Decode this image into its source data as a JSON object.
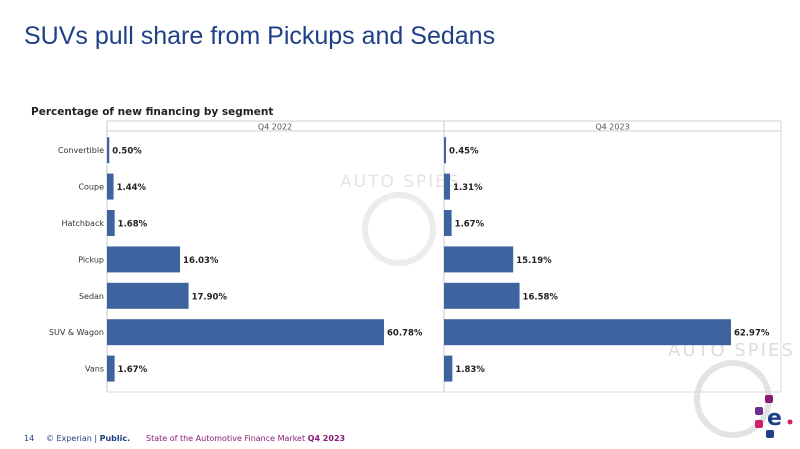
{
  "slide": {
    "title": "SUVs pull share from Pickups and Sedans",
    "watermark_text": "AUTO SPIES"
  },
  "footer": {
    "page_number": "14",
    "copyright_prefix": "© Experian | ",
    "copyright_strong": "Public.",
    "report_name": "State of the Automotive Finance Market ",
    "report_period": "Q4 2023"
  },
  "colors": {
    "bar": "#3e64a0",
    "title": "#1f3f87",
    "footer_accent": "#8a1c78"
  },
  "chart_data": {
    "type": "bar",
    "orientation": "horizontal",
    "title": "Percentage of new financing by segment",
    "categories": [
      "Convertible",
      "Coupe",
      "Hatchback",
      "Pickup",
      "Sedan",
      "SUV & Wagon",
      "Vans"
    ],
    "series": [
      {
        "name": "Q4 2022",
        "values": [
          0.5,
          1.44,
          1.68,
          16.03,
          17.9,
          60.78,
          1.67
        ],
        "labels": [
          "0.50%",
          "1.44%",
          "1.68%",
          "16.03%",
          "17.90%",
          "60.78%",
          "1.67%"
        ]
      },
      {
        "name": "Q4 2023",
        "values": [
          0.45,
          1.31,
          1.67,
          15.19,
          16.58,
          62.97,
          1.83
        ],
        "labels": [
          "0.45%",
          "1.31%",
          "1.67%",
          "15.19%",
          "16.58%",
          "62.97%",
          "1.83%"
        ]
      }
    ],
    "xlim": [
      0,
      70
    ],
    "grid": false,
    "legend": "panel-headers"
  }
}
